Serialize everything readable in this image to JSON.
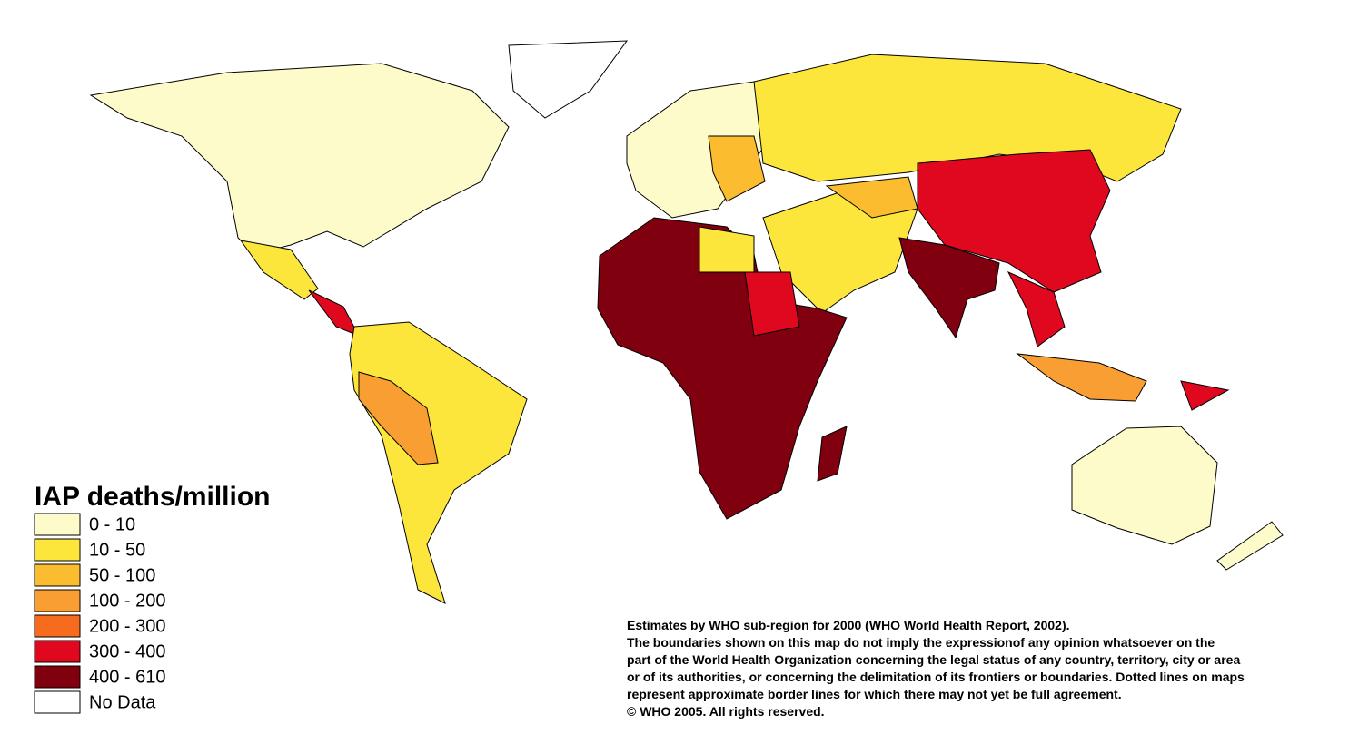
{
  "legend": {
    "title": "IAP deaths/million",
    "items": [
      {
        "label": "0 - 10",
        "color": "#fdfbc9"
      },
      {
        "label": "10 - 50",
        "color": "#fce63c"
      },
      {
        "label": "50 - 100",
        "color": "#fbbd2f"
      },
      {
        "label": "100 - 200",
        "color": "#f99e32"
      },
      {
        "label": "200 - 300",
        "color": "#f76b1f"
      },
      {
        "label": "300 - 400",
        "color": "#e0081f"
      },
      {
        "label": "400 - 610",
        "color": "#800010"
      },
      {
        "label": "No Data",
        "color": "#ffffff"
      }
    ]
  },
  "notes": [
    "Estimates by WHO sub-region for 2000 (WHO World Health Report, 2002).",
    "The boundaries shown on this map do not imply the expressionof any opinion whatsoever on the",
    " part of the World Health Organization concerning the legal status of any country, territory, city or area",
    "or of its authorities, or concerning the delimitation of its frontiers or boundaries.  Dotted lines on maps",
    "represent approximate border lines for which there may not yet be full agreement.",
    "© WHO 2005. All rights reserved."
  ]
}
